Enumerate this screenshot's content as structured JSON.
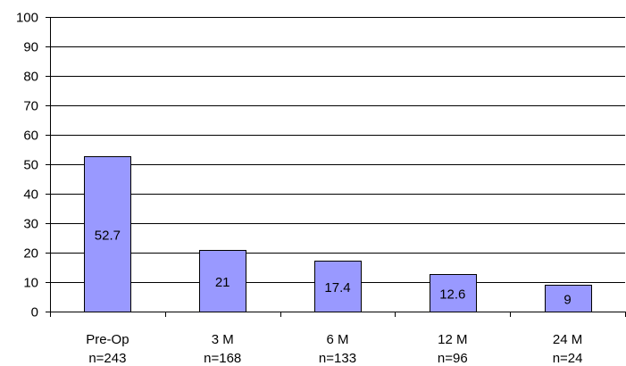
{
  "chart_data": {
    "type": "bar",
    "categories": [
      {
        "line1": "Pre-Op",
        "line2": "n=243"
      },
      {
        "line1": "3 M",
        "line2": "n=168"
      },
      {
        "line1": "6 M",
        "line2": "n=133"
      },
      {
        "line1": "12 M",
        "line2": "n=96"
      },
      {
        "line1": "24 M",
        "line2": "n=24"
      }
    ],
    "values": [
      52.7,
      21,
      17.4,
      12.6,
      9
    ],
    "data_labels": [
      "52.7",
      "21",
      "17.4",
      "12.6",
      "9"
    ],
    "ylim": [
      0,
      100
    ],
    "yticks": [
      0,
      10,
      20,
      30,
      40,
      50,
      60,
      70,
      80,
      90,
      100
    ],
    "grid": true,
    "legend": "none",
    "title": "",
    "xlabel": "",
    "ylabel": "",
    "colors": {
      "bar_fill": "#9999ff",
      "bar_stroke": "#000000",
      "grid": "#000000",
      "axis": "#000000",
      "background": "#ffffff"
    }
  }
}
